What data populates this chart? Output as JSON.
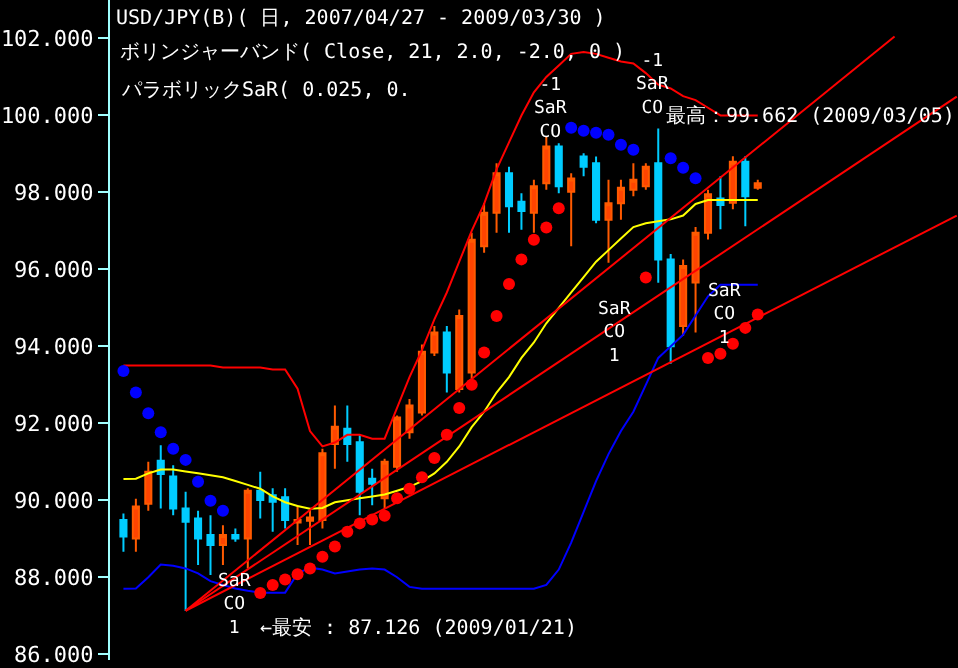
{
  "chart_data": {
    "type": "candlestick",
    "title": "USD/JPY(B)( 日, 2007/04/27 - 2009/03/30 )",
    "subtitle": "ボリンジャーバンド( Close, 21, 2.0, -2.0, 0 )",
    "categories": [
      null,
      null,
      null,
      null,
      null,
      null,
      null,
      null,
      null,
      null,
      null,
      null,
      null,
      null,
      null,
      null,
      null,
      null,
      null,
      null,
      null,
      null,
      null,
      null,
      null,
      null,
      null,
      null,
      null,
      null,
      null,
      null,
      null,
      null,
      null,
      null,
      null,
      null,
      null,
      null,
      null,
      null,
      null,
      null,
      null,
      null,
      null,
      null,
      null,
      null,
      null,
      null,
      null,
      null,
      null,
      null,
      null,
      null,
      null,
      null,
      null,
      null,
      null,
      null,
      null,
      null,
      null,
      null
    ],
    "ohlc": [
      [
        89.49,
        89.66,
        88.66,
        89.06
      ],
      [
        89.01,
        90.04,
        88.66,
        89.84
      ],
      [
        89.91,
        91.0,
        89.73,
        90.74
      ],
      [
        91.03,
        91.43,
        89.79,
        90.68
      ],
      [
        90.62,
        90.91,
        89.61,
        89.79
      ],
      [
        89.79,
        90.22,
        87.126,
        89.44
      ],
      [
        89.53,
        89.73,
        88.32,
        89.01
      ],
      [
        89.1,
        89.61,
        88.06,
        88.84
      ],
      [
        88.84,
        89.35,
        88.32,
        89.1
      ],
      [
        89.1,
        89.27,
        88.92,
        89.01
      ],
      [
        89.01,
        90.31,
        88.23,
        90.25
      ],
      [
        90.25,
        90.74,
        89.53,
        90.01
      ],
      [
        90.13,
        90.31,
        89.18,
        89.96
      ],
      [
        90.08,
        90.31,
        89.27,
        89.49
      ],
      [
        89.42,
        89.87,
        88.84,
        89.49
      ],
      [
        89.47,
        89.78,
        88.84,
        89.55
      ],
      [
        89.49,
        91.34,
        89.27,
        91.22
      ],
      [
        91.46,
        92.46,
        90.82,
        91.91
      ],
      [
        91.86,
        92.46,
        91.0,
        91.46
      ],
      [
        91.51,
        91.69,
        89.61,
        90.22
      ],
      [
        90.56,
        90.82,
        89.87,
        90.43
      ],
      [
        90.05,
        91.08,
        89.79,
        91.0
      ],
      [
        90.87,
        92.2,
        90.74,
        92.15
      ],
      [
        91.77,
        92.63,
        91.6,
        92.46
      ],
      [
        92.28,
        94.05,
        92.2,
        93.86
      ],
      [
        93.84,
        94.53,
        93.75,
        94.36
      ],
      [
        94.36,
        94.53,
        92.8,
        93.32
      ],
      [
        92.89,
        94.96,
        92.8,
        94.79
      ],
      [
        93.32,
        96.95,
        93.15,
        96.77
      ],
      [
        96.6,
        97.72,
        96.43,
        97.47
      ],
      [
        97.47,
        98.76,
        96.95,
        98.5
      ],
      [
        98.5,
        98.67,
        96.95,
        97.64
      ],
      [
        97.76,
        97.98,
        97.03,
        97.52
      ],
      [
        97.47,
        98.33,
        96.95,
        98.16
      ],
      [
        98.24,
        99.45,
        98.07,
        99.19
      ],
      [
        99.19,
        99.28,
        97.98,
        98.16
      ],
      [
        98.02,
        98.5,
        96.6,
        98.36
      ],
      [
        98.93,
        99.02,
        98.42,
        98.67
      ],
      [
        98.76,
        98.93,
        97.2,
        97.29
      ],
      [
        97.29,
        98.33,
        96.17,
        97.72
      ],
      [
        97.72,
        98.33,
        97.29,
        98.12
      ],
      [
        98.07,
        98.76,
        97.9,
        98.33
      ],
      [
        98.16,
        98.76,
        98.07,
        98.67
      ],
      [
        98.76,
        99.662,
        95.65,
        96.26
      ],
      [
        96.26,
        96.4,
        93.55,
        94.0
      ],
      [
        94.53,
        96.26,
        94.27,
        96.09
      ],
      [
        95.66,
        97.1,
        94.36,
        96.95
      ],
      [
        96.95,
        98.07,
        96.78,
        97.95
      ],
      [
        97.84,
        98.42,
        97.04,
        97.67
      ],
      [
        97.73,
        98.94,
        97.56,
        98.8
      ],
      [
        98.8,
        98.94,
        97.12,
        97.9
      ],
      [
        98.12,
        98.33,
        98.07,
        98.24
      ],
      null,
      null,
      null,
      null,
      null,
      null,
      null,
      null,
      null,
      null,
      null,
      null,
      null,
      null,
      null,
      null
    ],
    "series": [
      {
        "type": "line",
        "color": "#ff0000",
        "values": [
          93.5,
          93.5,
          93.5,
          93.5,
          93.5,
          93.5,
          93.5,
          93.5,
          93.45,
          93.45,
          93.45,
          93.45,
          93.4,
          93.4,
          92.9,
          91.8,
          91.4,
          91.5,
          91.7,
          91.7,
          91.6,
          91.6,
          92.4,
          93.2,
          93.9,
          94.7,
          95.4,
          96.2,
          97.0,
          97.7,
          98.6,
          99.3,
          100.0,
          100.6,
          101.0,
          101.3,
          101.6,
          101.65,
          101.6,
          101.5,
          101.4,
          101.35,
          101.1,
          100.8,
          100.7,
          100.5,
          100.4,
          100.2,
          100.0,
          100.0,
          100.0,
          100.0,
          null,
          null,
          null,
          null,
          null,
          null,
          null,
          null,
          null,
          null,
          null,
          null,
          null,
          null,
          null,
          null
        ]
      },
      {
        "type": "line",
        "color": "#ffff00",
        "values": [
          90.55,
          90.56,
          90.7,
          90.8,
          90.8,
          90.75,
          90.7,
          90.65,
          90.6,
          90.5,
          90.4,
          90.3,
          90.1,
          89.95,
          89.85,
          89.78,
          89.8,
          89.95,
          90.0,
          90.05,
          90.1,
          90.15,
          90.25,
          90.35,
          90.5,
          90.7,
          91.0,
          91.4,
          91.9,
          92.3,
          92.8,
          93.2,
          93.7,
          94.1,
          94.6,
          95.0,
          95.4,
          95.8,
          96.2,
          96.5,
          96.8,
          97.1,
          97.2,
          97.25,
          97.3,
          97.4,
          97.7,
          97.8,
          97.8,
          97.8,
          97.8,
          97.8,
          null,
          null,
          null,
          null,
          null,
          null,
          null,
          null,
          null,
          null,
          null,
          null,
          null,
          null,
          null,
          null
        ]
      },
      {
        "type": "line",
        "color": "#0000ff",
        "values": [
          87.7,
          87.71,
          88.0,
          88.33,
          88.3,
          88.23,
          88.1,
          87.9,
          87.8,
          87.71,
          87.65,
          87.6,
          87.6,
          87.6,
          88.1,
          88.25,
          88.2,
          88.1,
          88.15,
          88.2,
          88.23,
          88.2,
          88.0,
          87.75,
          87.7,
          87.7,
          87.7,
          87.7,
          87.7,
          87.7,
          87.7,
          87.7,
          87.7,
          87.7,
          87.8,
          88.2,
          88.9,
          89.7,
          90.5,
          91.2,
          91.8,
          92.3,
          93.0,
          93.7,
          94.0,
          94.3,
          94.8,
          95.3,
          95.6,
          95.6,
          95.6,
          95.6,
          null,
          null,
          null,
          null,
          null,
          null,
          null,
          null,
          null,
          null,
          null,
          null,
          null,
          null,
          null,
          null
        ]
      },
      {
        "type": "scatter",
        "color": "#0000ff",
        "marker": "circle",
        "values": [
          93.36,
          92.8,
          92.26,
          91.77,
          91.34,
          91.05,
          90.48,
          89.99,
          89.73,
          null,
          null,
          null,
          null,
          null,
          null,
          null,
          null,
          null,
          null,
          null,
          null,
          null,
          null,
          null,
          null,
          null,
          null,
          null,
          null,
          null,
          null,
          null,
          null,
          null,
          null,
          null,
          99.68,
          99.6,
          99.55,
          99.5,
          99.24,
          99.11,
          null,
          null,
          98.89,
          98.64,
          98.37,
          null,
          null,
          null,
          null,
          null,
          null,
          null,
          null,
          null,
          null,
          null,
          null,
          null,
          null,
          null,
          null,
          null,
          null,
          null,
          null,
          null
        ]
      },
      {
        "type": "scatter",
        "color": "#ff0000",
        "marker": "circle",
        "values": [
          null,
          null,
          null,
          null,
          null,
          null,
          null,
          null,
          null,
          null,
          null,
          87.59,
          87.8,
          87.94,
          88.08,
          88.23,
          88.53,
          88.8,
          89.18,
          89.4,
          89.5,
          89.6,
          90.05,
          90.3,
          90.6,
          91.1,
          91.7,
          92.4,
          93.0,
          93.84,
          94.79,
          95.62,
          96.26,
          96.77,
          97.09,
          97.59,
          null,
          null,
          null,
          null,
          null,
          null,
          95.79,
          null,
          null,
          null,
          null,
          93.7,
          93.81,
          94.07,
          94.48,
          94.83,
          null,
          null,
          null,
          null,
          null,
          null,
          null,
          null,
          null,
          null,
          null,
          null,
          null,
          null,
          null,
          null
        ]
      },
      {
        "type": "line",
        "color": "#ff0000",
        "values": [
          null,
          null,
          null,
          null,
          null,
          87.13,
          null,
          null,
          null,
          null,
          null,
          null,
          null,
          null,
          null,
          null,
          null,
          null,
          null,
          null,
          null,
          null,
          null,
          null,
          null,
          null,
          null,
          null,
          null,
          null,
          null,
          null,
          null,
          null,
          null,
          null,
          null,
          null,
          null,
          null,
          null,
          null,
          null,
          null,
          null,
          null,
          null,
          null,
          null,
          null,
          null,
          null,
          null,
          null,
          null,
          null,
          null,
          null,
          null,
          null,
          null,
          null,
          102.05,
          null,
          null,
          null,
          null,
          null
        ]
      },
      {
        "type": "line",
        "color": "#ff0000",
        "values": [
          null,
          null,
          null,
          null,
          null,
          87.13,
          null,
          null,
          null,
          null,
          null,
          null,
          null,
          null,
          null,
          null,
          null,
          null,
          null,
          null,
          null,
          null,
          null,
          null,
          null,
          null,
          null,
          null,
          null,
          null,
          null,
          null,
          null,
          null,
          null,
          null,
          null,
          null,
          null,
          null,
          null,
          null,
          null,
          null,
          null,
          null,
          null,
          null,
          null,
          null,
          null,
          null,
          null,
          null,
          null,
          null,
          null,
          null,
          null,
          null,
          null,
          null,
          null,
          null,
          null,
          null,
          null,
          100.49
        ]
      },
      {
        "type": "line",
        "color": "#ff0000",
        "values": [
          null,
          null,
          null,
          null,
          null,
          87.13,
          null,
          null,
          null,
          null,
          null,
          null,
          null,
          null,
          null,
          null,
          null,
          null,
          null,
          null,
          null,
          null,
          null,
          null,
          null,
          null,
          null,
          null,
          null,
          null,
          null,
          null,
          null,
          null,
          null,
          null,
          null,
          null,
          null,
          null,
          null,
          null,
          null,
          null,
          null,
          null,
          null,
          null,
          null,
          null,
          null,
          null,
          null,
          null,
          null,
          null,
          null,
          null,
          null,
          null,
          null,
          null,
          null,
          null,
          null,
          null,
          null,
          97.4
        ]
      }
    ],
    "ylim": [
      85.85,
      103.0
    ],
    "yticks": [
      {
        "value": 86,
        "label": "86.000"
      },
      {
        "value": 88,
        "label": "88.000"
      },
      {
        "value": 90,
        "label": "90.000"
      },
      {
        "value": 92,
        "label": "92.000"
      },
      {
        "value": 94,
        "label": "94.000"
      },
      {
        "value": 96,
        "label": "96.000"
      },
      {
        "value": 98,
        "label": "98.000"
      },
      {
        "value": 100,
        "label": "100.000"
      },
      {
        "value": 102,
        "label": "102.000"
      }
    ],
    "tick_labels": "y",
    "grid": false,
    "legend": false,
    "annotations": [
      "パラボリックSaR( 0.025, 0.",
      "最高：99.662 (2009/03/05)",
      "←最安 : 87.126 (2009/01/21)",
      "-1\nSaR\nCO",
      "-1\nSaR\nCO",
      "SaR\nCO\n1",
      "SaR\nCO\n1",
      "SaR\nCO\n1"
    ]
  }
}
